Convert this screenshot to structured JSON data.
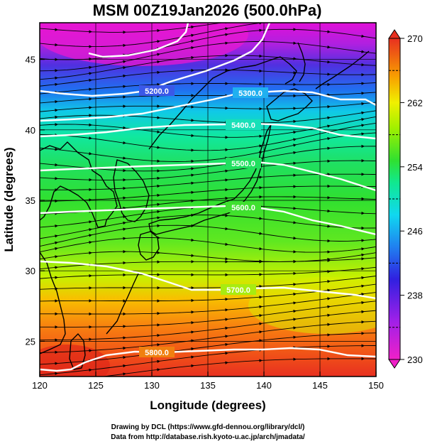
{
  "title": "MSM 00Z19Jan2026 (500.0hPa)",
  "x_axis": {
    "label": "Longitude (degrees)",
    "range": [
      120,
      150
    ],
    "ticks": [
      120,
      125,
      130,
      135,
      140,
      145,
      150
    ]
  },
  "y_axis": {
    "label": "Latitude  (degrees)",
    "range": [
      22.5,
      47.6
    ],
    "ticks": [
      25,
      30,
      35,
      40,
      45
    ]
  },
  "colorbar": {
    "range": [
      230,
      270
    ],
    "labeled_ticks": [
      "270",
      "262",
      "254",
      "246",
      "238",
      "230"
    ],
    "minor_ticks": [
      266,
      258,
      250,
      242,
      234
    ]
  },
  "contours": [
    {
      "value": 5200,
      "label": "5200.0"
    },
    {
      "value": 5300,
      "label": "5300.0"
    },
    {
      "value": 5400,
      "label": "5400.0"
    },
    {
      "value": 5500,
      "label": "5500.0"
    },
    {
      "value": 5600,
      "label": "5600.0"
    },
    {
      "value": 5700,
      "label": "5700.0"
    },
    {
      "value": 5800,
      "label": "5800.0"
    }
  ],
  "credits": {
    "line1": "Drawing by DCL (https://www.gfd-dennou.org/library/dcl/)",
    "line2": "Data from http://database.rish.kyoto-u.ac.jp/arch/jmadata/"
  },
  "colors": {
    "contour": "#ffffff",
    "coastline": "#000000",
    "streamline": "#000000"
  }
}
